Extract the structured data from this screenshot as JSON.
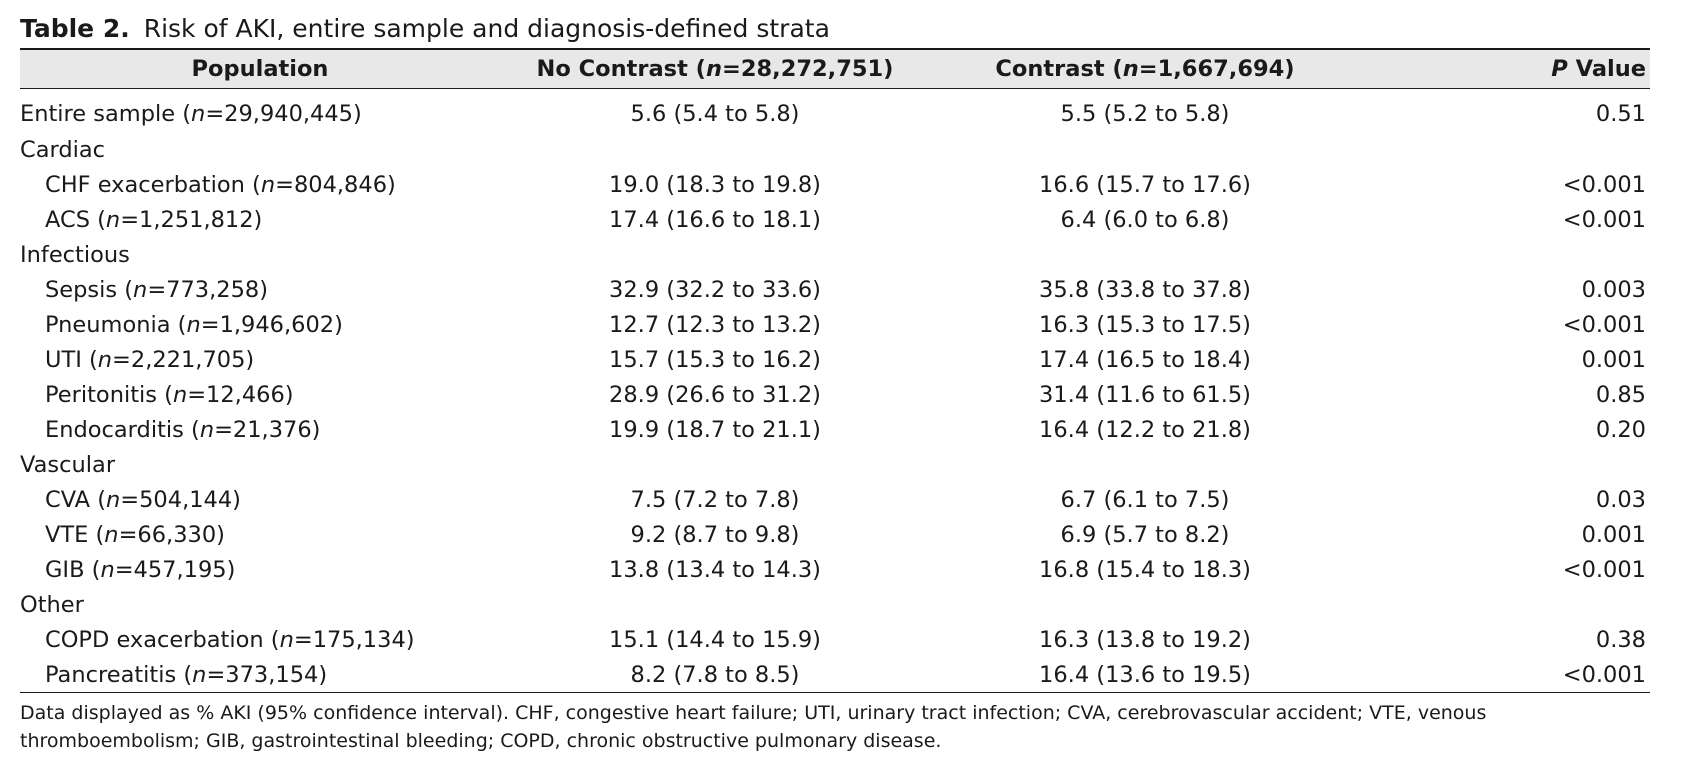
{
  "table_label": "Table 2.",
  "table_title": "Risk of AKI, entire sample and diagnosis-defined strata",
  "columns": {
    "population": "Population",
    "no_contrast": "No Contrast (n=28,272,751)",
    "contrast": "Contrast (n=1,667,694)",
    "p_value": "P Value"
  },
  "rows": [
    {
      "population": "Entire sample (n=29,940,445)",
      "no_contrast": "5.6 (5.4 to 5.8)",
      "contrast": "5.5 (5.2 to 5.8)",
      "p_value": "0.51"
    },
    {
      "group": "Cardiac"
    },
    {
      "population": "CHF exacerbation (n=804,846)",
      "no_contrast": "19.0 (18.3 to 19.8)",
      "contrast": "16.6 (15.7 to 17.6)",
      "p_value": "<0.001"
    },
    {
      "population": "ACS (n=1,251,812)",
      "no_contrast": "17.4 (16.6 to 18.1)",
      "contrast": "6.4 (6.0 to 6.8)",
      "p_value": "<0.001"
    },
    {
      "group": "Infectious"
    },
    {
      "population": "Sepsis (n=773,258)",
      "no_contrast": "32.9 (32.2 to 33.6)",
      "contrast": "35.8 (33.8 to 37.8)",
      "p_value": "0.003"
    },
    {
      "population": "Pneumonia (n=1,946,602)",
      "no_contrast": "12.7 (12.3 to 13.2)",
      "contrast": "16.3 (15.3 to 17.5)",
      "p_value": "<0.001"
    },
    {
      "population": "UTI (n=2,221,705)",
      "no_contrast": "15.7 (15.3 to 16.2)",
      "contrast": "17.4 (16.5 to 18.4)",
      "p_value": "0.001"
    },
    {
      "population": "Peritonitis (n=12,466)",
      "no_contrast": "28.9 (26.6 to 31.2)",
      "contrast": "31.4 (11.6 to 61.5)",
      "p_value": "0.85"
    },
    {
      "population": "Endocarditis (n=21,376)",
      "no_contrast": "19.9 (18.7 to 21.1)",
      "contrast": "16.4 (12.2 to 21.8)",
      "p_value": "0.20"
    },
    {
      "group": "Vascular"
    },
    {
      "population": "CVA (n=504,144)",
      "no_contrast": "7.5 (7.2 to 7.8)",
      "contrast": "6.7 (6.1 to 7.5)",
      "p_value": "0.03"
    },
    {
      "population": "VTE (n=66,330)",
      "no_contrast": "9.2 (8.7 to 9.8)",
      "contrast": "6.9 (5.7 to 8.2)",
      "p_value": "0.001"
    },
    {
      "population": "GIB (n=457,195)",
      "no_contrast": "13.8 (13.4 to 14.3)",
      "contrast": "16.8 (15.4 to 18.3)",
      "p_value": "<0.001"
    },
    {
      "group": "Other"
    },
    {
      "population": "COPD exacerbation (n=175,134)",
      "no_contrast": "15.1 (14.4 to 15.9)",
      "contrast": "16.3 (13.8 to 19.2)",
      "p_value": "0.38"
    },
    {
      "population": "Pancreatitis (n=373,154)",
      "no_contrast": "8.2 (7.8 to 8.5)",
      "contrast": "16.4 (13.6 to 19.5)",
      "p_value": "<0.001"
    }
  ],
  "footnote": "Data displayed as % AKI (95% confidence interval). CHF, congestive heart failure; UTI, urinary tract infection; CVA, cerebrovascular accident; VTE, venous thromboembolism; GIB, gastrointestinal bleeding; COPD, chronic obstructive pulmonary disease."
}
